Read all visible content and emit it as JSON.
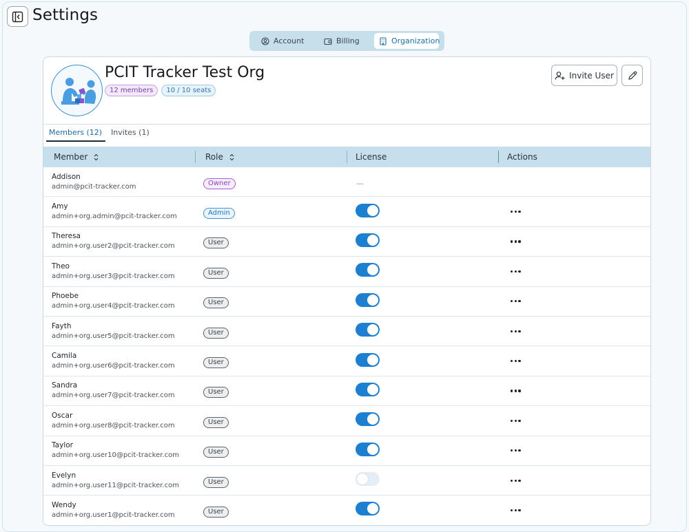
{
  "page": {
    "title": "Settings"
  },
  "segmented": [
    {
      "label": "Account",
      "icon": "user-circle-icon",
      "active": false
    },
    {
      "label": "Billing",
      "icon": "wallet-icon",
      "active": false
    },
    {
      "label": "Organization",
      "icon": "building-icon",
      "active": true
    }
  ],
  "org": {
    "name": "PCIT Tracker Test Org",
    "members_badge": "12 members",
    "seats_badge": "10 / 10 seats",
    "invite_label": "Invite User"
  },
  "tabs": [
    {
      "label": "Members (12)",
      "active": true
    },
    {
      "label": "Invites (1)",
      "active": false
    }
  ],
  "table": {
    "columns": [
      "Member",
      "Role",
      "License",
      "Actions"
    ],
    "rows": [
      {
        "name": "Addison",
        "email": "admin@pcit-tracker.com",
        "role": "Owner",
        "license": "—",
        "licensed": null
      },
      {
        "name": "Amy",
        "email": "admin+org.admin@pcit-tracker.com",
        "role": "Admin",
        "licensed": true
      },
      {
        "name": "Theresa",
        "email": "admin+org.user2@pcit-tracker.com",
        "role": "User",
        "licensed": true
      },
      {
        "name": "Theo",
        "email": "admin+org.user3@pcit-tracker.com",
        "role": "User",
        "licensed": true
      },
      {
        "name": "Phoebe",
        "email": "admin+org.user4@pcit-tracker.com",
        "role": "User",
        "licensed": true
      },
      {
        "name": "Fayth",
        "email": "admin+org.user5@pcit-tracker.com",
        "role": "User",
        "licensed": true
      },
      {
        "name": "Camila",
        "email": "admin+org.user6@pcit-tracker.com",
        "role": "User",
        "licensed": true
      },
      {
        "name": "Sandra",
        "email": "admin+org.user7@pcit-tracker.com",
        "role": "User",
        "licensed": true
      },
      {
        "name": "Oscar",
        "email": "admin+org.user8@pcit-tracker.com",
        "role": "User",
        "licensed": true
      },
      {
        "name": "Taylor",
        "email": "admin+org.user10@pcit-tracker.com",
        "role": "User",
        "licensed": true
      },
      {
        "name": "Evelyn",
        "email": "admin+org.user11@pcit-tracker.com",
        "role": "User",
        "licensed": false
      },
      {
        "name": "Wendy",
        "email": "admin+org.user1@pcit-tracker.com",
        "role": "User",
        "licensed": true
      }
    ]
  },
  "colors": {
    "accent": "#1c7fcf",
    "header_bg": "#c5e0ec",
    "owner": "#8a3fc0",
    "admin": "#2677b8"
  }
}
